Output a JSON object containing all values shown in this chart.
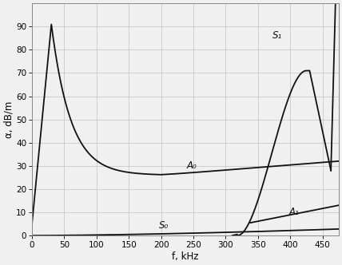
{
  "xlabel": "f, kHz",
  "ylabel": "α, dB/m",
  "xlim": [
    0,
    475
  ],
  "ylim": [
    0,
    100
  ],
  "xticks": [
    0,
    50,
    100,
    150,
    200,
    250,
    300,
    350,
    400,
    450
  ],
  "yticks": [
    0,
    10,
    20,
    30,
    40,
    50,
    60,
    70,
    80,
    90
  ],
  "grid_color": "#c8c8c8",
  "line_color": "#111111",
  "bg_color": "#f0f0f0",
  "label_A0": "A₀",
  "label_S0": "S₀",
  "label_S1": "S₁",
  "label_A1": "A₁",
  "label_fontsize": 8.5
}
